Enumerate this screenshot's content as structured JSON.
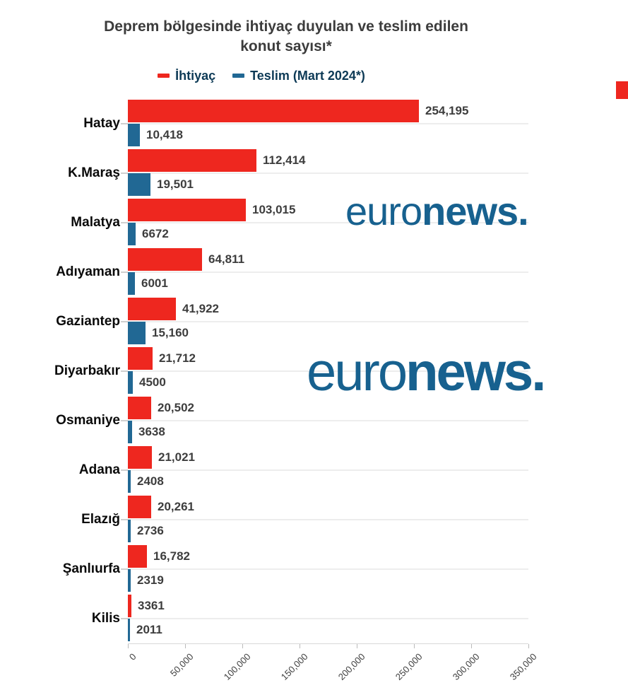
{
  "title": {
    "lines": [
      "Deprem bölgesinde ihtiyaç duyulan ve teslim edilen",
      "konut sayısı*"
    ]
  },
  "legend": {
    "items": [
      {
        "label": "İhtiyaç",
        "color": "#ee271f"
      },
      {
        "label": "Teslim (Mart 2024*)",
        "color": "#216894"
      }
    ]
  },
  "watermark": {
    "regular": "euro",
    "bold": "news."
  },
  "colors": {
    "need_bar": "#ee271f",
    "delivered_bar": "#216894",
    "logo_blue": "#17618f",
    "legend_text": "#0d3a56",
    "title_text": "#3c3c3c",
    "value_text": "#3d3d3d",
    "gridline": "#ededed",
    "corner_accent": "#ee271f"
  },
  "chart_data": {
    "type": "bar",
    "orientation": "horizontal",
    "title": "Deprem bölgesinde ihtiyaç duyulan ve teslim edilen konut sayısı*",
    "categories": [
      "Hatay",
      "K.Maraş",
      "Malatya",
      "Adıyaman",
      "Gaziantep",
      "Diyarbakır",
      "Osmaniye",
      "Adana",
      "Elazığ",
      "Şanlıurfa",
      "Kilis"
    ],
    "series": [
      {
        "name": "İhtiyaç",
        "color": "#ee271f",
        "values": [
          254195,
          112414,
          103015,
          64811,
          41922,
          21712,
          20502,
          21021,
          20261,
          16782,
          3361
        ],
        "labels": [
          "254,195",
          "112,414",
          "103,015",
          "64,811",
          "41,922",
          "21,712",
          "20,502",
          "21,021",
          "20,261",
          "16,782",
          "3361"
        ]
      },
      {
        "name": "Teslim (Mart 2024*)",
        "color": "#216894",
        "values": [
          10418,
          19501,
          6672,
          6001,
          15160,
          4500,
          3638,
          2408,
          2736,
          2319,
          2011
        ],
        "labels": [
          "10,418",
          "19,501",
          "6672",
          "6001",
          "15,160",
          "4500",
          "3638",
          "2408",
          "2736",
          "2319",
          "2011"
        ]
      }
    ],
    "xlim": [
      0,
      350000
    ],
    "x_ticks": [
      {
        "value": 0,
        "label": "0"
      },
      {
        "value": 50000,
        "label": "50,000"
      },
      {
        "value": 100000,
        "label": "100,000"
      },
      {
        "value": 150000,
        "label": "150,000"
      },
      {
        "value": 200000,
        "label": "200,000"
      },
      {
        "value": 250000,
        "label": "250,000"
      },
      {
        "value": 300000,
        "label": "300,000"
      },
      {
        "value": 350000,
        "label": "350,000"
      }
    ],
    "grid": "horizontal lines at category centers only",
    "legend_position": "top center",
    "value_labels": "shown at end of each bar"
  }
}
